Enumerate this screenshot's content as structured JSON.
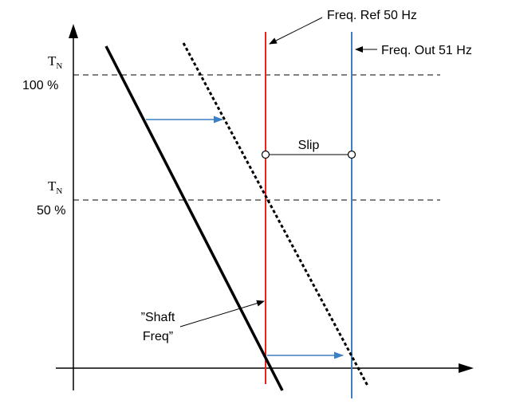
{
  "labels": {
    "tn_100_symbol": "T",
    "tn_100_sub": "N",
    "tn_100_pct": "100 %",
    "tn_50_symbol": "T",
    "tn_50_sub": "N",
    "tn_50_pct": "50 %",
    "freq_ref": "Freq. Ref 50 Hz",
    "freq_out": "Freq. Out 51 Hz",
    "slip": "Slip",
    "shaft_line1": "”Shaft",
    "shaft_line2": "Freq”"
  },
  "colors": {
    "axis": "#000000",
    "ref_line": "#e8251d",
    "out_line": "#3b7fc4",
    "shift_arrow": "#3b7fc4",
    "dashed": "#000000"
  }
}
